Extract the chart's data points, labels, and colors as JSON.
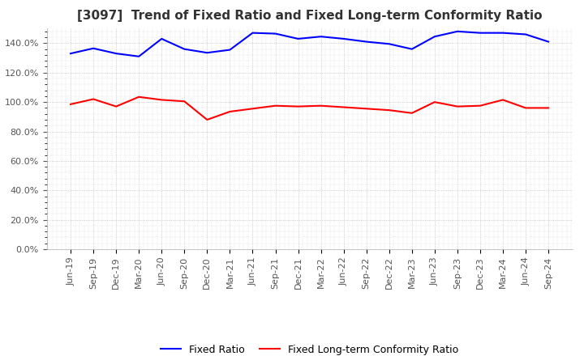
{
  "title": "[3097]  Trend of Fixed Ratio and Fixed Long-term Conformity Ratio",
  "x_labels": [
    "Jun-19",
    "Sep-19",
    "Dec-19",
    "Mar-20",
    "Jun-20",
    "Sep-20",
    "Dec-20",
    "Mar-21",
    "Jun-21",
    "Sep-21",
    "Dec-21",
    "Mar-22",
    "Jun-22",
    "Sep-22",
    "Dec-22",
    "Mar-23",
    "Jun-23",
    "Sep-23",
    "Dec-23",
    "Mar-24",
    "Jun-24",
    "Sep-24"
  ],
  "fixed_ratio": [
    133.0,
    136.5,
    133.0,
    131.0,
    143.0,
    136.0,
    133.5,
    135.5,
    147.0,
    146.5,
    143.0,
    144.5,
    143.0,
    141.0,
    139.5,
    136.0,
    144.5,
    148.0,
    147.0,
    147.0,
    146.0,
    141.0
  ],
  "fixed_lt_ratio": [
    98.5,
    102.0,
    97.0,
    103.5,
    101.5,
    100.5,
    88.0,
    93.5,
    95.5,
    97.5,
    97.0,
    97.5,
    96.5,
    95.5,
    94.5,
    92.5,
    100.0,
    97.0,
    97.5,
    101.5,
    96.0,
    96.0
  ],
  "fixed_ratio_color": "#0000ff",
  "fixed_lt_ratio_color": "#ff0000",
  "background_color": "#ffffff",
  "plot_bg_color": "#ffffff",
  "grid_color": "#999999",
  "ylim": [
    0,
    150
  ],
  "yticks": [
    0,
    20,
    40,
    60,
    80,
    100,
    120,
    140
  ],
  "title_fontsize": 11,
  "tick_fontsize": 8,
  "legend_labels": [
    "Fixed Ratio",
    "Fixed Long-term Conformity Ratio"
  ]
}
